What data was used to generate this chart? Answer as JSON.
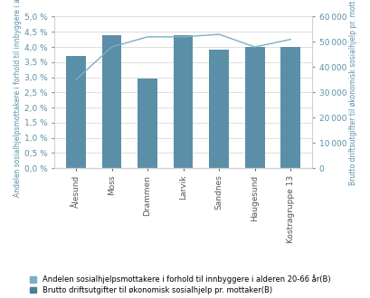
{
  "categories": [
    "Ålesund",
    "Moss",
    "Drammen",
    "Larvik",
    "Sandnes",
    "Haugesund",
    "Kostragruppe 13"
  ],
  "bar_values": [
    3.7,
    4.4,
    2.95,
    4.38,
    3.9,
    4.0,
    4.0
  ],
  "line_values": [
    35000,
    48000,
    52000,
    52000,
    53000,
    48000,
    51000
  ],
  "bar_color": "#5b8fa8",
  "line_color": "#7aafc4",
  "left_ylabel": "Andelen sosialhjelpsmottakere i forhold til innbyggere i alde",
  "right_ylabel": "Brutto driftsutgifter til økonomisk sosialhjelp pr. mott",
  "left_ylim": [
    0,
    5.0
  ],
  "right_ylim": [
    0,
    60000
  ],
  "left_yticks": [
    0.0,
    0.5,
    1.0,
    1.5,
    2.0,
    2.5,
    3.0,
    3.5,
    4.0,
    4.5,
    5.0
  ],
  "right_yticks": [
    0,
    10000,
    20000,
    30000,
    40000,
    50000,
    60000
  ],
  "legend_label_bar_light": "Andelen sosialhjelpsmottakere i forhold til innbyggere i alderen 20-66 år(B)",
  "legend_label_bar_dark": "Brutto driftsutgifter til økonomisk sosialhjelp pr. mottaker(B)",
  "background_color": "#ffffff",
  "grid_color": "#d0d0d0",
  "label_color": "#5b8fa8",
  "tick_label_fontsize": 6.5,
  "axis_label_fontsize": 5.5,
  "legend_fontsize": 6.0,
  "bar_color_light": "#7aafc4",
  "bar_color_dark": "#4a7d96"
}
